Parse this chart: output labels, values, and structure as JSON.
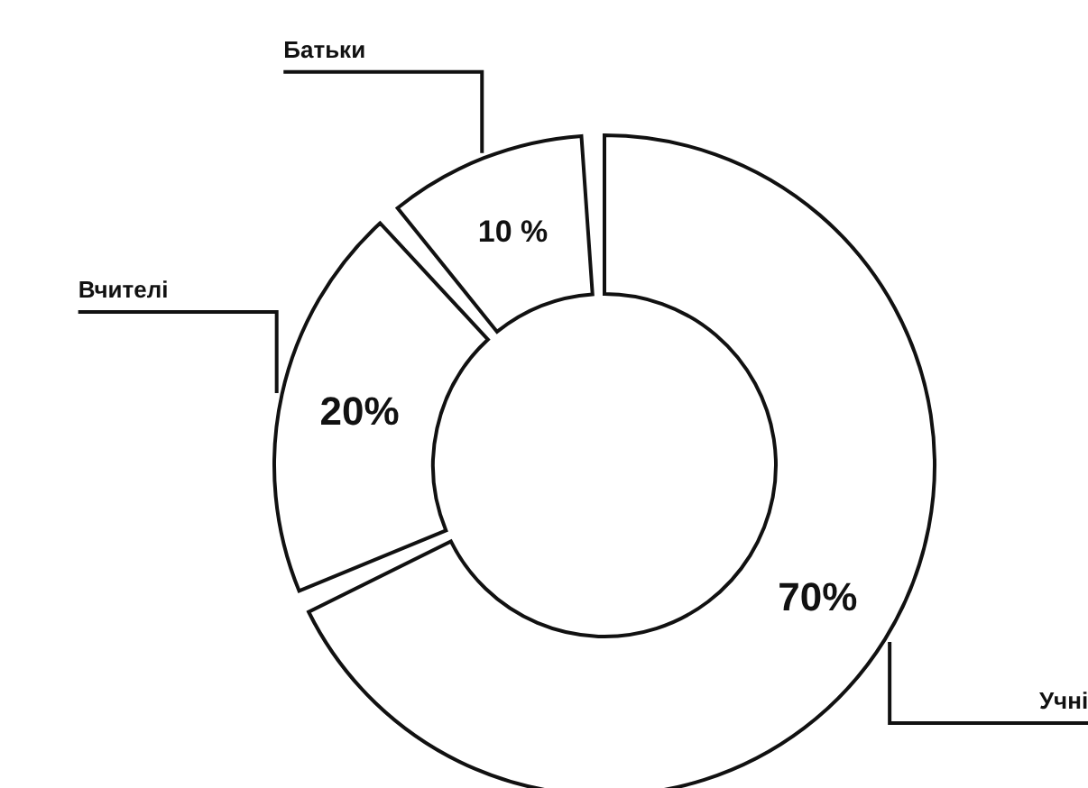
{
  "chart_data": {
    "type": "donut",
    "categories": [
      "Учні",
      "Вчителі",
      "Батьки"
    ],
    "values": [
      70,
      20,
      10
    ],
    "value_labels": [
      "70%",
      "20%",
      "10 %"
    ],
    "colors": [
      "#ffffff",
      "#ffffff",
      "#ffffff"
    ]
  }
}
